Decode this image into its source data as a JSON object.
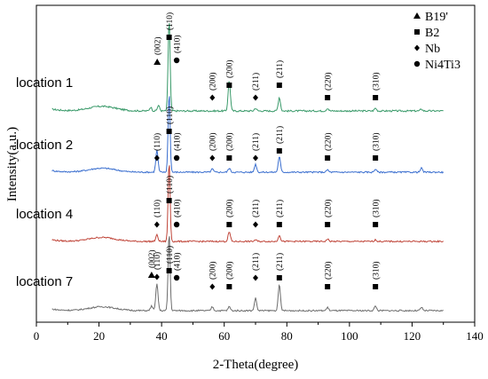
{
  "chart_data": {
    "type": "line",
    "xlabel": "2-Theta(degree)",
    "ylabel": "Intensity(a.u.)",
    "xlim": [
      0,
      140
    ],
    "x_ticks": [
      "0",
      "20",
      "40",
      "60",
      "80",
      "100",
      "120",
      "140"
    ],
    "grid": false,
    "legend_position": "top-right",
    "legend": [
      {
        "symbol": "triangle",
        "label": "B19'"
      },
      {
        "symbol": "square",
        "label": "B2"
      },
      {
        "symbol": "diamond",
        "label": "Nb"
      },
      {
        "symbol": "circle",
        "label": "Ni4Ti3"
      }
    ],
    "x_range_plotted": [
      5,
      130
    ],
    "series": [
      {
        "name": "location 1",
        "color": "#3a9a6a",
        "peaks": [
          {
            "x": 42.4,
            "h": 1.0
          },
          {
            "x": 36.5,
            "h": 0.04
          },
          {
            "x": 39.0,
            "h": 0.06
          },
          {
            "x": 61.6,
            "h": 0.33
          },
          {
            "x": 77.6,
            "h": 0.15
          },
          {
            "x": 70.0,
            "h": 0.03
          },
          {
            "x": 93.0,
            "h": 0.03
          },
          {
            "x": 108.3,
            "h": 0.03
          },
          {
            "x": 123.0,
            "h": 0.02
          }
        ],
        "annotations": [
          {
            "x": 38.6,
            "label": "(002)",
            "marker": "triangle"
          },
          {
            "x": 42.4,
            "label": "(110)",
            "marker": "square"
          },
          {
            "x": 44.8,
            "label": "(410)",
            "marker": "circle"
          },
          {
            "x": 56.2,
            "label": "(200)",
            "marker": "diamond"
          },
          {
            "x": 61.6,
            "label": "(200)",
            "marker": "square"
          },
          {
            "x": 70.0,
            "label": "(211)",
            "marker": "diamond"
          },
          {
            "x": 77.6,
            "label": "(211)",
            "marker": "square"
          },
          {
            "x": 93.0,
            "label": "(220)",
            "marker": "square"
          },
          {
            "x": 108.3,
            "label": "(310)",
            "marker": "square"
          }
        ]
      },
      {
        "name": "location 2",
        "color": "#3b6fcf",
        "peaks": [
          {
            "x": 42.4,
            "h": 1.0
          },
          {
            "x": 38.5,
            "h": 0.28
          },
          {
            "x": 61.6,
            "h": 0.05
          },
          {
            "x": 70.0,
            "h": 0.1
          },
          {
            "x": 77.6,
            "h": 0.2
          },
          {
            "x": 56.2,
            "h": 0.04
          },
          {
            "x": 93.0,
            "h": 0.03
          },
          {
            "x": 108.3,
            "h": 0.04
          },
          {
            "x": 123.0,
            "h": 0.05
          }
        ],
        "annotations": [
          {
            "x": 38.5,
            "label": "(110)",
            "marker": "diamond"
          },
          {
            "x": 42.4,
            "label": "(110)",
            "marker": "square"
          },
          {
            "x": 44.8,
            "label": "(410)",
            "marker": "circle"
          },
          {
            "x": 56.2,
            "label": "(200)",
            "marker": "diamond"
          },
          {
            "x": 61.6,
            "label": "(200)",
            "marker": "square"
          },
          {
            "x": 70.0,
            "label": "(211)",
            "marker": "diamond"
          },
          {
            "x": 77.6,
            "label": "(211)",
            "marker": "square"
          },
          {
            "x": 93.0,
            "label": "(220)",
            "marker": "square"
          },
          {
            "x": 108.3,
            "label": "(310)",
            "marker": "square"
          }
        ]
      },
      {
        "name": "location 4",
        "color": "#c0463a",
        "peaks": [
          {
            "x": 42.4,
            "h": 1.0
          },
          {
            "x": 38.5,
            "h": 0.08
          },
          {
            "x": 61.6,
            "h": 0.12
          },
          {
            "x": 77.6,
            "h": 0.08
          },
          {
            "x": 70.0,
            "h": 0.02
          },
          {
            "x": 93.0,
            "h": 0.03
          },
          {
            "x": 108.3,
            "h": 0.02
          }
        ],
        "annotations": [
          {
            "x": 38.5,
            "label": "(110)",
            "marker": "diamond"
          },
          {
            "x": 42.4,
            "label": "(110)",
            "marker": "square"
          },
          {
            "x": 44.8,
            "label": "(410)",
            "marker": "circle"
          },
          {
            "x": 61.6,
            "label": "(200)",
            "marker": "square"
          },
          {
            "x": 70.0,
            "label": "(211)",
            "marker": "diamond"
          },
          {
            "x": 77.6,
            "label": "(211)",
            "marker": "square"
          },
          {
            "x": 93.0,
            "label": "(220)",
            "marker": "square"
          },
          {
            "x": 108.3,
            "label": "(310)",
            "marker": "square"
          }
        ]
      },
      {
        "name": "location 7",
        "color": "#6e6e6e",
        "peaks": [
          {
            "x": 42.4,
            "h": 1.0
          },
          {
            "x": 38.5,
            "h": 0.35
          },
          {
            "x": 36.8,
            "h": 0.06
          },
          {
            "x": 61.6,
            "h": 0.05
          },
          {
            "x": 70.0,
            "h": 0.16
          },
          {
            "x": 77.6,
            "h": 0.33
          },
          {
            "x": 56.2,
            "h": 0.05
          },
          {
            "x": 93.0,
            "h": 0.04
          },
          {
            "x": 108.3,
            "h": 0.06
          },
          {
            "x": 123.0,
            "h": 0.04
          }
        ],
        "annotations": [
          {
            "x": 36.8,
            "label": "(002)",
            "marker": "triangle"
          },
          {
            "x": 38.5,
            "label": "(110)",
            "marker": "diamond"
          },
          {
            "x": 42.4,
            "label": "(110)",
            "marker": "square"
          },
          {
            "x": 44.8,
            "label": "(410)",
            "marker": "circle"
          },
          {
            "x": 56.2,
            "label": "(200)",
            "marker": "diamond"
          },
          {
            "x": 61.6,
            "label": "(200)",
            "marker": "square"
          },
          {
            "x": 70.0,
            "label": "(211)",
            "marker": "diamond"
          },
          {
            "x": 77.6,
            "label": "(211)",
            "marker": "square"
          },
          {
            "x": 93.0,
            "label": "(220)",
            "marker": "square"
          },
          {
            "x": 108.3,
            "label": "(310)",
            "marker": "square"
          }
        ]
      }
    ]
  }
}
